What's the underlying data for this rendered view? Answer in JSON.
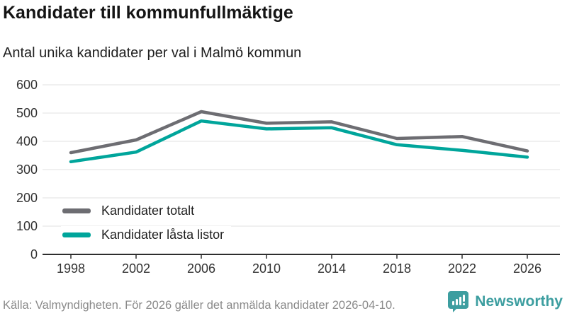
{
  "header": {
    "title": "Kandidater till kommunfullmäktige",
    "subtitle": "Antal unika kandidater per val i Malmö kommun"
  },
  "colors": {
    "total": "#6d6d72",
    "locked": "#00a59b",
    "grid": "#e6e6e6",
    "axis": "#2e2e2e",
    "tick_text": "#333333",
    "logo": "#3d9ea0"
  },
  "legend": [
    {
      "label": "Kandidater totalt",
      "color_key": "total"
    },
    {
      "label": "Kandidater låsta listor",
      "color_key": "locked"
    }
  ],
  "footer": {
    "source": "Källa: Valmyndigheten. För 2026 gäller det anmälda kandidater 2026-04-10.",
    "brand": "Newsworthy"
  },
  "chart_data": {
    "type": "line",
    "categories": [
      "1998",
      "2002",
      "2006",
      "2010",
      "2014",
      "2018",
      "2022",
      "2026"
    ],
    "series": [
      {
        "name": "Kandidater totalt",
        "color_key": "total",
        "values": [
          360,
          405,
          505,
          464,
          469,
          410,
          417,
          366
        ]
      },
      {
        "name": "Kandidater låsta listor",
        "color_key": "locked",
        "values": [
          328,
          362,
          472,
          444,
          448,
          388,
          368,
          344
        ]
      }
    ],
    "title": "Kandidater till kommunfullmäktige",
    "subtitle": "Antal unika kandidater per val i Malmö kommun",
    "xlabel": "",
    "ylabel": "",
    "ylim": [
      0,
      600
    ],
    "ytick_step": 100,
    "yticks": [
      0,
      100,
      200,
      300,
      400,
      500,
      600
    ],
    "grid": "horizontal",
    "legend_position": "bottom-left-inside"
  }
}
